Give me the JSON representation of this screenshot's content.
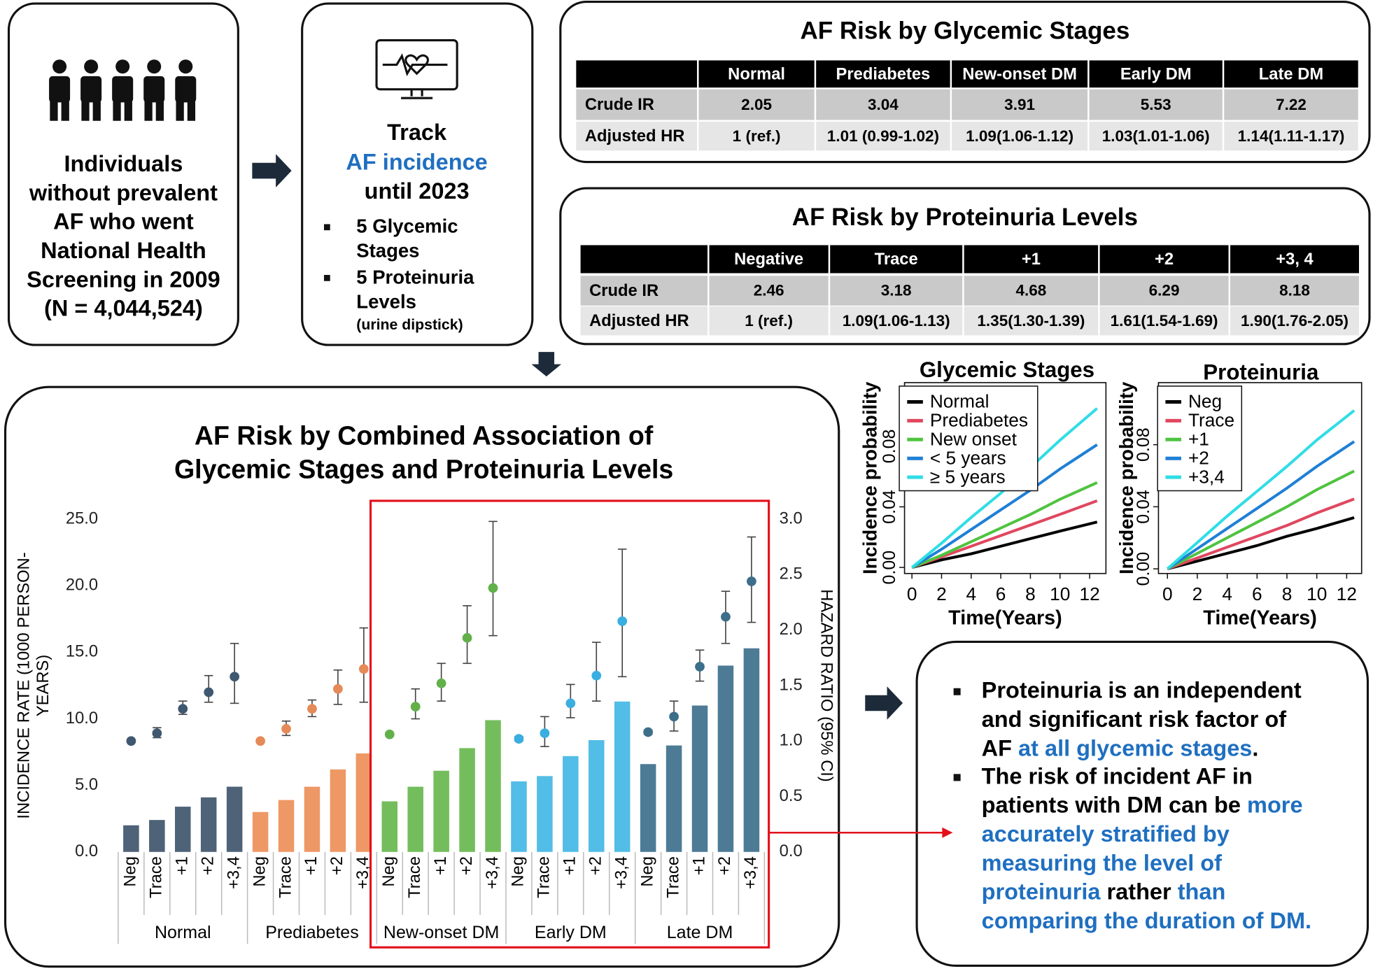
{
  "cohort": {
    "lines": [
      "Individuals",
      "without prevalent",
      "AF who went",
      "National Health",
      "Screening in 2009",
      "(N = 4,044,524)"
    ]
  },
  "track": {
    "title": "Track",
    "highlight": "AF incidence",
    "until": "until 2023",
    "items": [
      [
        "5 Glycemic",
        "Stages"
      ],
      [
        "5 Proteinuria",
        "Levels"
      ]
    ],
    "note": "(urine dipstick)",
    "highlight_color": "#1f6fc0"
  },
  "tables": [
    {
      "title": "AF Risk by Glycemic Stages",
      "header": [
        "Normal",
        "Prediabetes",
        "New-onset DM",
        "Early DM",
        "Late DM"
      ],
      "rows": [
        [
          "Crude IR",
          "2.05",
          "3.04",
          "3.91",
          "5.53",
          "7.22"
        ],
        [
          "Adjusted HR",
          "1 (ref.)",
          "1.01 (0.99-1.02)",
          "1.09(1.06-1.12)",
          "1.03(1.01-1.06)",
          "1.14(1.11-1.17)"
        ]
      ]
    },
    {
      "title": "AF Risk by Proteinuria Levels",
      "header": [
        "Negative",
        "Trace",
        "+1",
        "+2",
        "+3, 4"
      ],
      "rows": [
        [
          "Crude IR",
          "2.46",
          "3.18",
          "4.68",
          "6.29",
          "8.18"
        ],
        [
          "Adjusted HR",
          "1 (ref.)",
          "1.09(1.06-1.13)",
          "1.35(1.30-1.39)",
          "1.61(1.54-1.69)",
          "1.90(1.76-2.05)"
        ]
      ]
    }
  ],
  "conclusion": {
    "bullets": [
      [
        [
          {
            "text": "Proteinuria is an independent",
            "color": "#000000"
          }
        ],
        [
          {
            "text": "and significant risk factor of",
            "color": "#000000"
          }
        ],
        [
          {
            "text": "AF ",
            "color": "#000000"
          },
          {
            "text": "at all glycemic stages",
            "color": "#1f6fc0"
          },
          {
            "text": ".",
            "color": "#000000"
          }
        ]
      ],
      [
        [
          {
            "text": "The risk of incident AF in",
            "color": "#000000"
          }
        ],
        [
          {
            "text": "patients with DM can be ",
            "color": "#000000"
          },
          {
            "text": "more",
            "color": "#1f6fc0"
          }
        ],
        [
          {
            "text": "accurately stratified by",
            "color": "#1f6fc0"
          }
        ],
        [
          {
            "text": "measuring the level of",
            "color": "#1f6fc0"
          }
        ],
        [
          {
            "text": "proteinuria",
            "color": "#1f6fc0"
          },
          {
            "text": " rather ",
            "color": "#000000"
          },
          {
            "text": "than",
            "color": "#1f6fc0"
          }
        ],
        [
          {
            "text": "comparing the duration of DM.",
            "color": "#1f6fc0"
          }
        ]
      ]
    ]
  },
  "chart_data": [
    {
      "type": "bar",
      "title": [
        "AF Risk by Combined Association of",
        "Glycemic Stages and Proteinuria Levels"
      ],
      "categories": [
        "Neg",
        "Trace",
        "+1",
        "+2",
        "+3,4",
        "Neg",
        "Trace",
        "+1",
        "+2",
        "+3,4",
        "Neg",
        "Trace",
        "+1",
        "+2",
        "+3,4",
        "Neg",
        "Trace",
        "+1",
        "+2",
        "+3,4",
        "Neg",
        "Trace",
        "+1",
        "+2",
        "+3,4"
      ],
      "groups": [
        "Normal",
        "Prediabetes",
        "New-onset DM",
        "Early DM",
        "Late DM"
      ],
      "ylabel": [
        "INCIDENCE RATE (1000 PERSON-",
        "YEARS)"
      ],
      "y2label": "HAZARD RATIO (95% CI)",
      "ylim": [
        0,
        25
      ],
      "yticks": [
        {
          "value": 0,
          "label": "0.0"
        },
        {
          "value": 5,
          "label": "5.0"
        },
        {
          "value": 10,
          "label": "10.0"
        },
        {
          "value": 15,
          "label": "15.0"
        },
        {
          "value": 20,
          "label": "20.0"
        },
        {
          "value": 25,
          "label": "25.0"
        }
      ],
      "y2lim": [
        0,
        3
      ],
      "y2ticks": [
        {
          "value": 0,
          "label": "0.0"
        },
        {
          "value": 0.5,
          "label": "0.5"
        },
        {
          "value": 1,
          "label": "1.0"
        },
        {
          "value": 1.5,
          "label": "1.5"
        },
        {
          "value": 2,
          "label": "2.0"
        },
        {
          "value": 2.5,
          "label": "2.5"
        },
        {
          "value": 3,
          "label": "3.0"
        }
      ],
      "series": [
        {
          "axis": "y",
          "group_colors": [
            "#4e6278",
            "#ee9866",
            "#74bd5c",
            "#52bde6",
            "#4d7b96"
          ],
          "values": [
            2.0,
            2.4,
            3.4,
            4.1,
            4.9,
            3.0,
            3.9,
            4.9,
            6.2,
            7.4,
            3.8,
            4.9,
            6.1,
            7.8,
            9.9,
            5.3,
            5.7,
            7.2,
            8.4,
            11.3,
            6.6,
            8.0,
            11.0,
            14.0,
            15.3
          ]
        },
        {
          "axis": "y2",
          "group_colors": [
            "#3f5870",
            "#e58a58",
            "#62b04a",
            "#3aaee0",
            "#3d6e8a"
          ],
          "values": [
            1.0,
            1.07,
            1.29,
            1.44,
            1.58,
            1.0,
            1.11,
            1.29,
            1.47,
            1.65,
            1.06,
            1.31,
            1.52,
            1.93,
            2.38,
            1.02,
            1.07,
            1.34,
            1.59,
            2.08,
            1.08,
            1.22,
            1.67,
            2.12,
            2.44
          ],
          "lower": [
            null,
            1.03,
            1.24,
            1.35,
            1.34,
            null,
            1.05,
            1.22,
            1.33,
            1.35,
            1.05,
            1.2,
            1.36,
            1.7,
            1.95,
            1.0,
            0.95,
            1.21,
            1.36,
            1.58,
            1.06,
            1.09,
            1.54,
            1.88,
            2.07
          ],
          "upper": [
            null,
            1.12,
            1.36,
            1.59,
            1.88,
            null,
            1.18,
            1.37,
            1.64,
            2.02,
            1.07,
            1.47,
            1.7,
            2.22,
            2.98,
            1.04,
            1.22,
            1.51,
            1.89,
            2.73,
            1.1,
            1.36,
            1.82,
            2.35,
            2.84
          ]
        }
      ]
    },
    {
      "type": "line",
      "title": "Glycemic Stages",
      "xlabel": "Time(Years)",
      "ylabel": "Incidence probability",
      "x": [
        0,
        2,
        4,
        6,
        8,
        10,
        12.5
      ],
      "xlim": [
        -0.5,
        13.1
      ],
      "xticks": [
        0,
        2,
        4,
        6,
        8,
        10,
        12
      ],
      "ylim": [
        -0.004,
        0.122
      ],
      "yticks": [
        {
          "value": 0,
          "label": "0.00"
        },
        {
          "value": 0.04,
          "label": "0.04"
        },
        {
          "value": 0.08,
          "label": "0.08"
        }
      ],
      "series": [
        {
          "name": "Normal",
          "color": "#000000",
          "values": [
            0,
            0.005,
            0.009,
            0.014,
            0.019,
            0.024,
            0.03
          ]
        },
        {
          "name": "Prediabetes",
          "color": "#e0475f",
          "values": [
            0,
            0.007,
            0.014,
            0.021,
            0.028,
            0.035,
            0.044
          ]
        },
        {
          "name": "New onset",
          "color": "#4fc33f",
          "values": [
            0,
            0.008,
            0.017,
            0.026,
            0.035,
            0.045,
            0.056
          ]
        },
        {
          "name": "< 5 years",
          "color": "#1f7fd6",
          "values": [
            0,
            0.012,
            0.025,
            0.038,
            0.051,
            0.065,
            0.081
          ]
        },
        {
          "name": "≥ 5 years",
          "color": "#2fdde6",
          "values": [
            0,
            0.016,
            0.033,
            0.049,
            0.066,
            0.084,
            0.105
          ]
        }
      ]
    },
    {
      "type": "line",
      "title": "Proteinuria",
      "xlabel": "Time(Years)",
      "ylabel": "Incidence probability",
      "x": [
        0,
        2,
        4,
        6,
        8,
        10,
        12.5
      ],
      "xlim": [
        -0.6,
        13
      ],
      "xticks": [
        0,
        2,
        4,
        6,
        8,
        10,
        12
      ],
      "ylim": [
        -0.003,
        0.12
      ],
      "yticks": [
        {
          "value": 0,
          "label": "0.00"
        },
        {
          "value": 0.04,
          "label": "0.04"
        },
        {
          "value": 0.08,
          "label": "0.08"
        }
      ],
      "series": [
        {
          "name": "Neg",
          "color": "#000000",
          "values": [
            0,
            0.005,
            0.01,
            0.015,
            0.021,
            0.026,
            0.033
          ]
        },
        {
          "name": "Trace",
          "color": "#e0475f",
          "values": [
            0,
            0.007,
            0.014,
            0.021,
            0.028,
            0.036,
            0.045
          ]
        },
        {
          "name": "+1",
          "color": "#4fc33f",
          "values": [
            0,
            0.01,
            0.02,
            0.03,
            0.04,
            0.051,
            0.063
          ]
        },
        {
          "name": "+2",
          "color": "#1f7fd6",
          "values": [
            0,
            0.013,
            0.026,
            0.039,
            0.052,
            0.066,
            0.082
          ]
        },
        {
          "name": "+3,4",
          "color": "#2fdde6",
          "values": [
            0,
            0.017,
            0.034,
            0.05,
            0.066,
            0.083,
            0.102
          ]
        }
      ]
    }
  ]
}
